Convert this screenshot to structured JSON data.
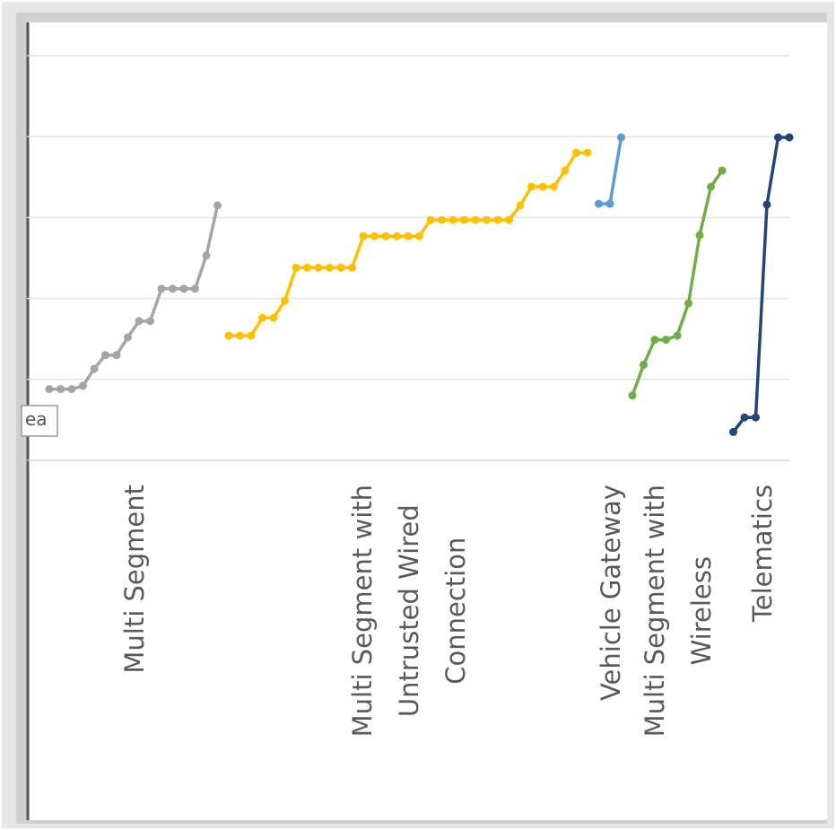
{
  "chart_data": {
    "type": "line",
    "annotation": "ea",
    "xlim": [
      0,
      68
    ],
    "ylim": [
      0,
      5
    ],
    "yticks": [
      0,
      1,
      2,
      3,
      4,
      5
    ],
    "grid": true,
    "series": [
      {
        "name": [
          "Multi Segment"
        ],
        "color": "#a5a5a5",
        "x": [
          2,
          3,
          4,
          5,
          6,
          7,
          8,
          9,
          10,
          11,
          12,
          13,
          14,
          15,
          16,
          17
        ],
        "values": [
          0.88,
          0.88,
          0.88,
          0.92,
          1.13,
          1.3,
          1.3,
          1.52,
          1.72,
          1.72,
          2.12,
          2.12,
          2.12,
          2.12,
          2.53,
          3.15
        ]
      },
      {
        "name": [
          "Multi Segment with",
          "Untrusted Wired",
          "Connection"
        ],
        "color": "#ffc000",
        "x": [
          18,
          19,
          20,
          21,
          22,
          23,
          24,
          25,
          26,
          27,
          28,
          29,
          30,
          31,
          32,
          33,
          34,
          35,
          36,
          37,
          38,
          39,
          40,
          41,
          42,
          43,
          44,
          45,
          46,
          47,
          48,
          49,
          50
        ],
        "values": [
          1.54,
          1.54,
          1.54,
          1.76,
          1.76,
          1.97,
          2.38,
          2.38,
          2.38,
          2.38,
          2.38,
          2.38,
          2.77,
          2.77,
          2.77,
          2.77,
          2.77,
          2.77,
          2.97,
          2.97,
          2.97,
          2.97,
          2.97,
          2.97,
          2.97,
          2.97,
          3.15,
          3.38,
          3.38,
          3.38,
          3.58,
          3.8,
          3.8
        ]
      },
      {
        "name": [
          "Vehicle Gateway"
        ],
        "color": "#5b9bd5",
        "x": [
          51,
          52,
          53
        ],
        "values": [
          3.17,
          3.17,
          3.99
        ]
      },
      {
        "name": [
          "Multi Segment with",
          "Wireless"
        ],
        "color": "#70ad47",
        "x": [
          54,
          55,
          56,
          57,
          58,
          59,
          60,
          61,
          62
        ],
        "values": [
          0.8,
          1.18,
          1.49,
          1.49,
          1.54,
          1.94,
          2.78,
          3.38,
          3.58
        ]
      },
      {
        "name": [
          "Telematics"
        ],
        "color": "#264478",
        "x": [
          63,
          64,
          65,
          66,
          67,
          68
        ],
        "values": [
          0.35,
          0.53,
          0.53,
          3.16,
          3.99,
          3.99
        ]
      }
    ]
  }
}
